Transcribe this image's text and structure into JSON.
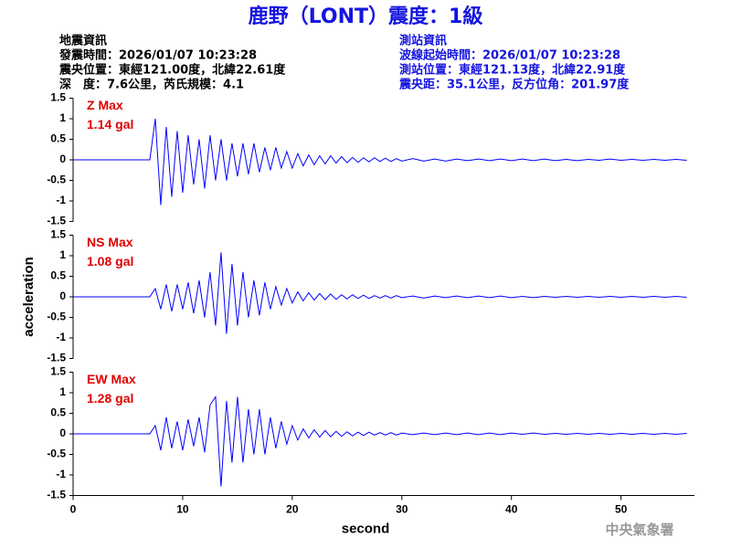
{
  "title": "鹿野（LONT）震度：1級",
  "header": {
    "left": [
      "地震資訊",
      "發震時間：2026/01/07 10:23:28",
      "震央位置：東經121.00度，北緯22.61度",
      "深　度：7.6公里，芮氏規模：4.1"
    ],
    "right": [
      "測站資訊",
      "波線起始時間：2026/01/07 10:23:28",
      "測站位置：東經121.13度，北緯22.91度",
      "震央距：35.1公里，反方位角：201.97度"
    ]
  },
  "watermark": "中央氣象署",
  "chart_data": [
    {
      "type": "line",
      "label": "Z Max",
      "max_label": "1.14 gal",
      "color": "#0000ff",
      "x": [
        0,
        7,
        7.5,
        8,
        8.5,
        9,
        9.5,
        10,
        10.5,
        11,
        11.5,
        12,
        12.5,
        13,
        13.5,
        14,
        14.5,
        15,
        15.5,
        16,
        16.5,
        17,
        17.5,
        18,
        18.5,
        19,
        19.5,
        20,
        20.5,
        21,
        21.5,
        22,
        22.5,
        23,
        23.5,
        24,
        24.5,
        25,
        25.5,
        26,
        26.5,
        27,
        27.5,
        28,
        28.5,
        29,
        29.5,
        30,
        31,
        32,
        33,
        34,
        35,
        36,
        37,
        38,
        39,
        40,
        41,
        42,
        43,
        44,
        45,
        46,
        47,
        48,
        49,
        50,
        51,
        52,
        53,
        54,
        55,
        56
      ],
      "values": [
        0,
        0,
        1.0,
        -1.1,
        0.8,
        -0.9,
        0.7,
        -0.8,
        0.6,
        -0.6,
        0.5,
        -0.7,
        0.6,
        -0.5,
        0.5,
        -0.5,
        0.4,
        -0.4,
        0.4,
        -0.35,
        0.4,
        -0.3,
        0.3,
        -0.25,
        0.3,
        -0.2,
        0.2,
        -0.2,
        0.15,
        -0.15,
        0.12,
        -0.12,
        0.1,
        -0.1,
        0.1,
        -0.08,
        0.08,
        -0.07,
        0.06,
        -0.06,
        0.05,
        -0.05,
        0.05,
        -0.04,
        0.04,
        -0.04,
        0.03,
        -0.03,
        0.03,
        -0.03,
        0.02,
        -0.03,
        0.02,
        -0.02,
        0.02,
        -0.02,
        0.02,
        -0.02,
        0.02,
        -0.02,
        0.02,
        -0.02,
        0.01,
        -0.02,
        0.01,
        -0.01,
        0.02,
        -0.01,
        0.01,
        -0.01,
        0.01,
        -0.01,
        0.01,
        -0.01
      ],
      "xlim": [
        0,
        56.7
      ],
      "ylim": [
        -1.5,
        1.5
      ],
      "yticks": [
        1.5,
        1,
        0.5,
        0,
        -0.5,
        -1,
        -1.5
      ]
    },
    {
      "type": "line",
      "label": "NS Max",
      "max_label": "1.08 gal",
      "color": "#0000ff",
      "y_label": "acceleration",
      "x": [
        0,
        7,
        7.5,
        8,
        8.5,
        9,
        9.5,
        10,
        10.5,
        11,
        11.5,
        12,
        12.5,
        13,
        13.5,
        14,
        14.5,
        15,
        15.5,
        16,
        16.5,
        17,
        17.5,
        18,
        18.5,
        19,
        19.5,
        20,
        20.5,
        21,
        21.5,
        22,
        22.5,
        23,
        23.5,
        24,
        24.5,
        25,
        25.5,
        26,
        26.5,
        27,
        27.5,
        28,
        28.5,
        29,
        29.5,
        30,
        31,
        32,
        33,
        34,
        35,
        36,
        37,
        38,
        39,
        40,
        41,
        42,
        43,
        44,
        45,
        46,
        47,
        48,
        49,
        50,
        51,
        52,
        53,
        54,
        55,
        56
      ],
      "values": [
        0,
        0,
        0.2,
        -0.3,
        0.3,
        -0.35,
        0.3,
        -0.3,
        0.35,
        -0.4,
        0.4,
        -0.5,
        0.6,
        -0.7,
        1.08,
        -0.9,
        0.8,
        -0.7,
        0.6,
        -0.5,
        0.4,
        -0.45,
        0.35,
        -0.3,
        0.25,
        -0.2,
        0.2,
        -0.15,
        0.12,
        -0.1,
        0.1,
        -0.08,
        0.08,
        -0.07,
        0.07,
        -0.06,
        0.05,
        -0.05,
        0.05,
        -0.04,
        0.04,
        -0.04,
        0.03,
        -0.03,
        0.03,
        -0.03,
        0.03,
        -0.02,
        0.02,
        -0.03,
        0.02,
        -0.02,
        0.02,
        -0.02,
        0.02,
        -0.02,
        0.02,
        -0.02,
        0.01,
        -0.02,
        0.01,
        -0.01,
        0.01,
        -0.01,
        0.01,
        -0.01,
        0.01,
        -0.01,
        0.01,
        -0.01,
        0.01,
        -0.01,
        0.01,
        -0.01
      ],
      "xlim": [
        0,
        56.7
      ],
      "ylim": [
        -1.5,
        1.5
      ],
      "yticks": [
        1.5,
        1,
        0.5,
        0,
        -0.5,
        -1,
        -1.5
      ]
    },
    {
      "type": "line",
      "label": "EW Max",
      "max_label": "1.28 gal",
      "color": "#0000ff",
      "x_label": "second",
      "x": [
        0,
        7,
        7.5,
        8,
        8.5,
        9,
        9.5,
        10,
        10.5,
        11,
        11.5,
        12,
        12.5,
        13,
        13.5,
        14,
        14.5,
        15,
        15.5,
        16,
        16.5,
        17,
        17.5,
        18,
        18.5,
        19,
        19.5,
        20,
        20.5,
        21,
        21.5,
        22,
        22.5,
        23,
        23.5,
        24,
        24.5,
        25,
        25.5,
        26,
        26.5,
        27,
        27.5,
        28,
        28.5,
        29,
        29.5,
        30,
        31,
        32,
        33,
        34,
        35,
        36,
        37,
        38,
        39,
        40,
        41,
        42,
        43,
        44,
        45,
        46,
        47,
        48,
        49,
        50,
        51,
        52,
        53,
        54,
        55,
        56
      ],
      "values": [
        0,
        0,
        0.2,
        -0.4,
        0.4,
        -0.35,
        0.3,
        -0.4,
        0.35,
        -0.3,
        0.4,
        -0.45,
        0.7,
        0.9,
        -1.28,
        0.8,
        -0.7,
        0.9,
        -0.7,
        0.6,
        -0.5,
        0.6,
        -0.5,
        0.4,
        -0.35,
        0.3,
        -0.25,
        0.2,
        -0.15,
        0.12,
        -0.1,
        0.1,
        -0.08,
        0.08,
        -0.07,
        0.06,
        -0.06,
        0.05,
        -0.05,
        0.04,
        -0.04,
        0.04,
        -0.03,
        0.03,
        -0.03,
        0.03,
        -0.03,
        0.02,
        -0.02,
        0.02,
        -0.02,
        0.02,
        -0.02,
        0.02,
        -0.02,
        0.02,
        -0.02,
        0.02,
        -0.01,
        0.02,
        -0.01,
        0.01,
        -0.01,
        0.01,
        -0.01,
        0.01,
        -0.01,
        0.01,
        -0.01,
        0.01,
        -0.01,
        0.01,
        -0.01,
        0.01
      ],
      "xlim": [
        0,
        56.7
      ],
      "ylim": [
        -1.5,
        1.5
      ],
      "yticks": [
        1.5,
        1,
        0.5,
        0,
        -0.5,
        -1,
        -1.5
      ],
      "xticks": [
        0,
        10,
        20,
        30,
        40,
        50
      ]
    }
  ]
}
